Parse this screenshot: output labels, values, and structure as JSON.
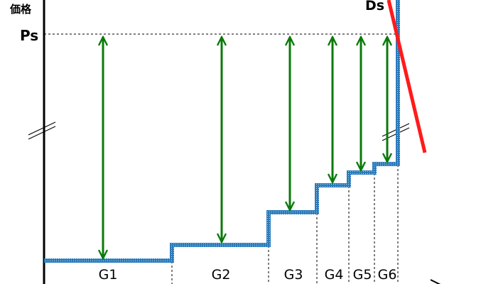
{
  "diagram": {
    "y_axis_label": "価格",
    "price_label": "Ps",
    "demand_label": "Ds",
    "groups": [
      {
        "label": "G1"
      },
      {
        "label": "G2"
      },
      {
        "label": "G3"
      },
      {
        "label": "G4"
      },
      {
        "label": "G5"
      },
      {
        "label": "G6"
      }
    ],
    "colors": {
      "supply_step": "#2b7bba",
      "demand_line": "#ff1a1a",
      "arrows": "#0a7a0a",
      "axis": "#000000"
    }
  }
}
